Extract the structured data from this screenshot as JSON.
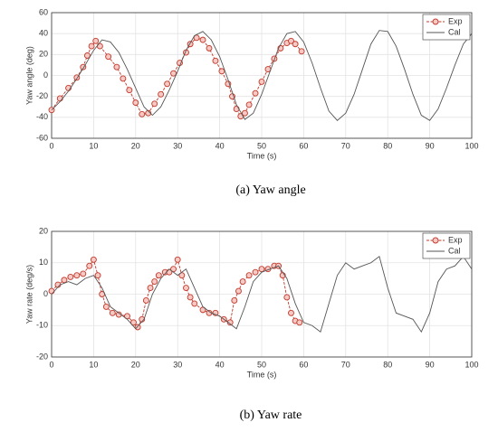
{
  "chart_data": [
    {
      "type": "line",
      "caption": "(a) Yaw angle",
      "xlabel": "Time (s)",
      "ylabel": "Yaw angle (deg)",
      "xlim": [
        0,
        100
      ],
      "xticks": [
        0,
        10,
        20,
        30,
        40,
        50,
        60,
        70,
        80,
        90,
        100
      ],
      "ylim": [
        -60,
        60
      ],
      "yticks": [
        -60,
        -40,
        -20,
        0,
        20,
        40,
        60
      ],
      "grid": true,
      "legend": "northeast",
      "series": [
        {
          "name": "Exp",
          "color": "#c0392b",
          "marker": "o",
          "x": [
            0,
            2,
            4,
            6,
            7.5,
            8.5,
            9.5,
            10.5,
            11.5,
            13.5,
            15.5,
            17,
            18.5,
            20,
            21.5,
            23,
            24.5,
            26,
            27.5,
            29,
            30.5,
            32,
            33,
            34.5,
            36,
            37.5,
            39,
            40.5,
            42,
            43,
            44,
            45,
            46,
            47,
            48.5,
            50,
            51.5,
            53,
            54.5,
            56,
            57,
            58,
            59.5
          ],
          "values": [
            -33,
            -22,
            -12,
            -2,
            8,
            19,
            28,
            33,
            28,
            18,
            8,
            -3,
            -14,
            -26,
            -37,
            -36,
            -27,
            -18,
            -8,
            2,
            12,
            22,
            30,
            36,
            34,
            26,
            14,
            4,
            -8,
            -20,
            -32,
            -39,
            -36,
            -28,
            -17,
            -6,
            6,
            16,
            26,
            31,
            33,
            30,
            23
          ]
        },
        {
          "name": "Cal",
          "color": "#555555",
          "x": [
            0,
            2,
            4,
            6,
            8,
            10,
            12,
            14,
            16,
            18,
            20,
            22,
            24,
            26,
            28,
            30,
            32,
            34,
            36,
            38,
            40,
            42,
            44,
            46,
            48,
            50,
            52,
            54,
            56,
            58,
            60,
            62,
            64,
            66,
            68,
            70,
            72,
            74,
            76,
            78,
            80,
            82,
            84,
            86,
            88,
            90,
            92,
            94,
            96,
            98,
            100
          ],
          "values": [
            -33,
            -25,
            -15,
            -3,
            10,
            24,
            34,
            32,
            22,
            6,
            -12,
            -30,
            -38,
            -30,
            -14,
            4,
            24,
            38,
            42,
            34,
            18,
            -4,
            -28,
            -42,
            -36,
            -18,
            4,
            26,
            40,
            42,
            32,
            12,
            -12,
            -34,
            -43,
            -36,
            -18,
            6,
            30,
            43,
            42,
            28,
            6,
            -18,
            -38,
            -43,
            -32,
            -12,
            10,
            30,
            40
          ]
        }
      ]
    },
    {
      "type": "line",
      "caption": "(b) Yaw rate",
      "xlabel": "Time (s)",
      "ylabel": "Yaw rate (deg/s)",
      "xlim": [
        0,
        100
      ],
      "xticks": [
        0,
        10,
        20,
        30,
        40,
        50,
        60,
        70,
        80,
        90,
        100
      ],
      "ylim": [
        -20,
        20
      ],
      "yticks": [
        -20,
        -10,
        0,
        10,
        20
      ],
      "grid": true,
      "legend": "northeast",
      "series": [
        {
          "name": "Exp",
          "color": "#c0392b",
          "marker": "o",
          "x": [
            0,
            1.5,
            3,
            4.5,
            6,
            7.5,
            9,
            10,
            11,
            12,
            13,
            14.5,
            16,
            18,
            19.5,
            20.5,
            21.5,
            22.5,
            23.5,
            24.5,
            25.5,
            27,
            28,
            29,
            30,
            31,
            32,
            33,
            34,
            36,
            37.5,
            39,
            41,
            42.5,
            43.5,
            44.5,
            45.5,
            47,
            48.5,
            50,
            51.5,
            53,
            54,
            55,
            56,
            57,
            58,
            59
          ],
          "values": [
            1,
            3,
            4.5,
            5.5,
            6,
            6.5,
            9,
            11,
            6,
            0,
            -4,
            -6,
            -6.5,
            -7,
            -9,
            -10.5,
            -8,
            -2,
            2,
            4,
            6,
            7,
            7,
            8,
            11,
            6,
            2,
            -1,
            -3,
            -5,
            -6,
            -6,
            -8,
            -9,
            -2,
            1,
            4,
            6,
            7,
            8,
            8,
            9,
            9,
            6,
            -1,
            -6,
            -8.5,
            -9
          ]
        },
        {
          "name": "Cal",
          "color": "#555555",
          "x": [
            0,
            2,
            4,
            6,
            8,
            10,
            12,
            14,
            16,
            18,
            20,
            22,
            24,
            26,
            28,
            30,
            32,
            34,
            36,
            38,
            40,
            42,
            44,
            46,
            48,
            50,
            52,
            54,
            56,
            58,
            60,
            62,
            64,
            66,
            68,
            70,
            72,
            74,
            76,
            78,
            80,
            82,
            84,
            86,
            88,
            90,
            92,
            94,
            96,
            98,
            100
          ],
          "values": [
            0,
            3,
            4,
            3,
            5,
            6,
            2,
            -4,
            -6,
            -8,
            -11,
            -8,
            0,
            5,
            8,
            6,
            8,
            2,
            -4,
            -6,
            -7,
            -9,
            -11,
            -4,
            4,
            7,
            8,
            9,
            5,
            -3,
            -9,
            -10,
            -12,
            -3,
            6,
            10,
            8,
            9,
            10,
            12,
            2,
            -6,
            -7,
            -8,
            -12,
            -6,
            4,
            8,
            9,
            12,
            8
          ]
        }
      ]
    }
  ]
}
